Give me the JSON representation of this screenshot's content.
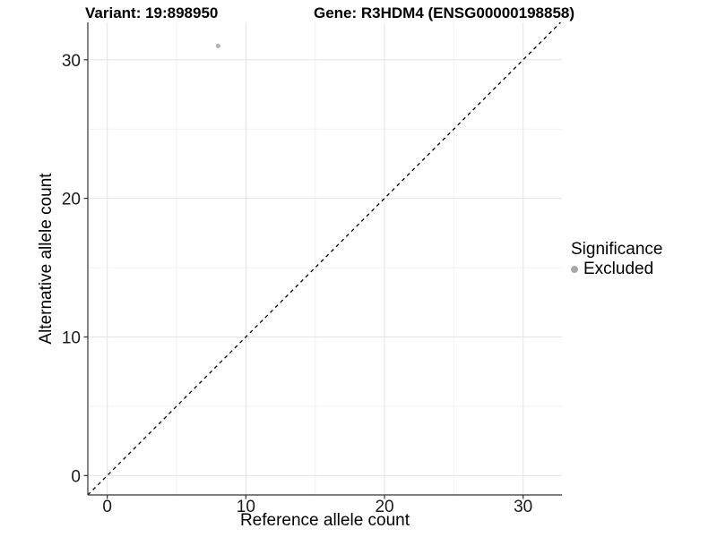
{
  "chart_data": {
    "type": "scatter",
    "title_left": "Variant: 19:898950",
    "title_right": "Gene: R3HDM4 (ENSG00000198858)",
    "xlabel": "Reference allele count",
    "ylabel": "Alternative allele count",
    "xlim": [
      -1.4,
      32.8
    ],
    "ylim": [
      -1.4,
      32.7
    ],
    "xticks": [
      0,
      10,
      20,
      30
    ],
    "yticks": [
      0,
      10,
      20,
      30
    ],
    "xticks_minor": [
      5,
      15,
      25
    ],
    "yticks_minor": [
      5,
      15,
      25
    ],
    "grid": true,
    "series": [
      {
        "name": "Excluded",
        "color": "#b3b3b3",
        "points": [
          {
            "x": 8,
            "y": 31
          }
        ]
      }
    ],
    "reference_line": {
      "type": "identity",
      "equation": "y = x",
      "style": "dashed",
      "color": "#000000"
    },
    "legend": {
      "title": "Significance",
      "position": "right",
      "items": [
        {
          "label": "Excluded",
          "color": "#a8a8a8",
          "marker": "circle"
        }
      ]
    },
    "colors": {
      "grid_major": "#e4e4e4",
      "grid_minor": "#f1f1f1",
      "axis_line": "#333333",
      "tick_text": "#1a1a1a"
    }
  }
}
